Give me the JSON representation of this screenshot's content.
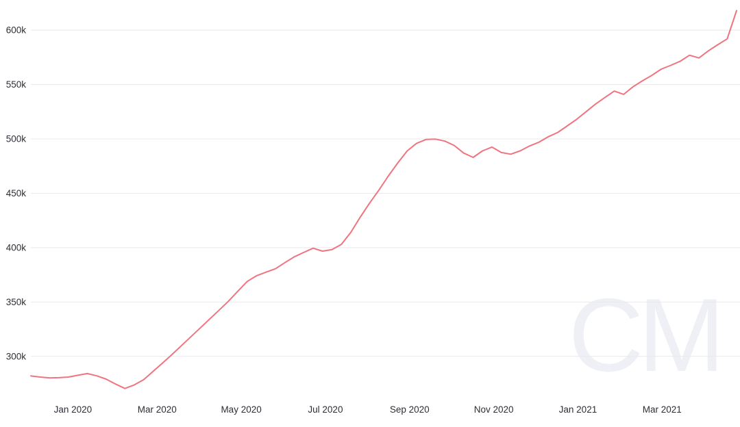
{
  "chart_data": {
    "type": "line",
    "title": "",
    "legend": "none",
    "grid": "horizontal",
    "value_suffix": "k",
    "ylim": [
      264,
      624
    ],
    "x_domain_months": [
      0,
      16.77
    ],
    "y_ticks": [
      {
        "label": "300k",
        "value": 300
      },
      {
        "label": "350k",
        "value": 350
      },
      {
        "label": "400k",
        "value": 400
      },
      {
        "label": "450k",
        "value": 450
      },
      {
        "label": "500k",
        "value": 500
      },
      {
        "label": "550k",
        "value": 550
      },
      {
        "label": "600k",
        "value": 600
      }
    ],
    "x_ticks": [
      {
        "label": "Jan 2020",
        "month": 1
      },
      {
        "label": "Mar 2020",
        "month": 3
      },
      {
        "label": "May 2020",
        "month": 5
      },
      {
        "label": "Jul 2020",
        "month": 7
      },
      {
        "label": "Sep 2020",
        "month": 9
      },
      {
        "label": "Nov 2020",
        "month": 11
      },
      {
        "label": "Jan 2021",
        "month": 13
      },
      {
        "label": "Mar 2021",
        "month": 15
      }
    ],
    "values_thousands": [
      282,
      281,
      280.2,
      280.4,
      281,
      282.6,
      284.2,
      282.1,
      279.1,
      274.6,
      270.5,
      273.8,
      278.6,
      286.3,
      293.9,
      301.7,
      309.8,
      318,
      326.1,
      334.3,
      342.5,
      350.7,
      359.9,
      369,
      374.2,
      377.5,
      380.6,
      386.2,
      391.6,
      395.6,
      399.5,
      396.8,
      398.2,
      403,
      414,
      428,
      441,
      453,
      466,
      478,
      489,
      496,
      499.5,
      499.8,
      498,
      494,
      487,
      483,
      489,
      492.5,
      487.5,
      486,
      489,
      493.5,
      497,
      502,
      506,
      512,
      518,
      525,
      532,
      538,
      544,
      541,
      548,
      553.5,
      558.5,
      564.2,
      567.7,
      571.4,
      577,
      574.5,
      581,
      586.6,
      592,
      618
    ],
    "watermark": "CM",
    "colors": {
      "line": "#f1737f",
      "grid": "#e9e9ec",
      "label": "#2d2e35",
      "watermark": "#eef0f5"
    }
  }
}
